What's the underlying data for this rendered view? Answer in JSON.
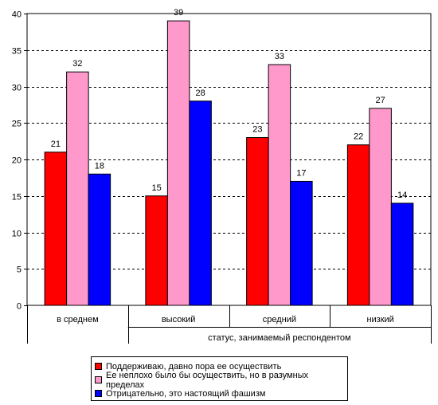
{
  "chart_data": {
    "type": "bar",
    "y_axis": {
      "ylim": [
        0,
        40
      ],
      "ticks": [
        "0",
        "5",
        "10",
        "15",
        "20",
        "25",
        "30",
        "35",
        "40"
      ],
      "grid": "dashed horizontal"
    },
    "categories": [
      {
        "label": "в среднем",
        "group": ""
      },
      {
        "label": "высокий",
        "group": "статус, занимаемый респондентом"
      },
      {
        "label": "средний",
        "group": "статус, занимаемый респондентом"
      },
      {
        "label": "низкий",
        "group": "статус, занимаемый респондентом"
      }
    ],
    "group_label": "статус, занимаемый респондентом",
    "series": [
      {
        "name": "Поддерживаю, давно пора ее осуществить",
        "color": "#ff0000",
        "values": [
          21,
          15,
          23,
          22
        ]
      },
      {
        "name": "Ее неплохо было бы осуществить, но в разумных пределах",
        "color": "#ff99cc",
        "values": [
          32,
          39,
          33,
          27
        ]
      },
      {
        "name": "Отрицательно, это настоящий фашизм",
        "color": "#0000ff",
        "values": [
          18,
          28,
          17,
          14
        ]
      }
    ],
    "legend_position": "bottom"
  }
}
